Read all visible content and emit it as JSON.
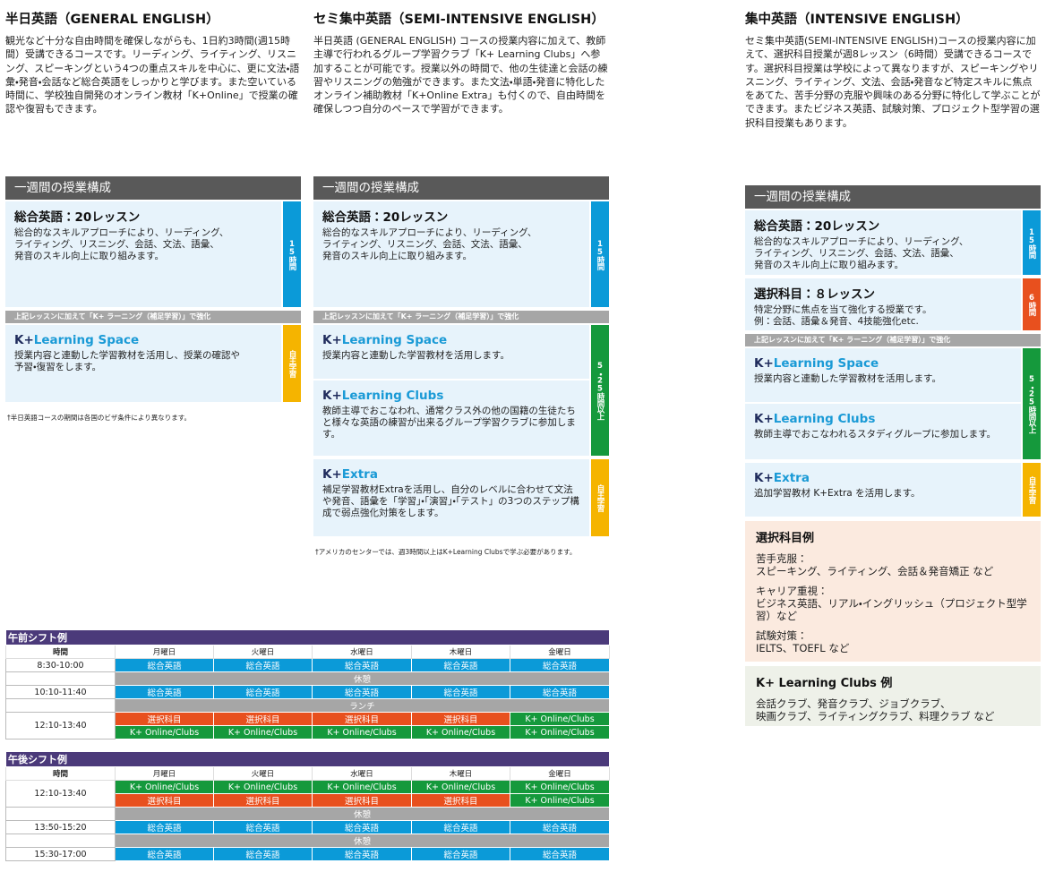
{
  "courses": [
    {
      "title": "半日英語（GENERAL ENGLISH）",
      "description": "観光など十分な自由時間を確保しながらも、1日約3時間(週15時間）受講できるコースです。リーディング、ライティング、リスニング、スピーキングという4つの重点スキルを中心に、更に文法・語彙・発音・会話など総合英語をしっかりと学びます。また空いている時間に、学校独自開発のオンライン教材「K+Online」で授業の確認や復習もできます。",
      "schedule_title": "一週間の授業構成",
      "groups": [
        {
          "side": "15時間",
          "color": "#0b9ad8",
          "items": [
            {
              "title": "総合英語：20レッスン",
              "text": "総合的なスキルアプローチにより、リーディング、\nライティング、リスニング、会話、文法、語彙、\n発音のスキル向上に取り組みます。"
            }
          ]
        },
        {
          "banner": "上記レッスンに加えて「K+ ラーニング（補足学習）」で強化"
        },
        {
          "side": "自主学習",
          "color": "#f5b400",
          "items": [
            {
              "logo": "K+",
              "title": "Learning Space",
              "text": "授業内容と連動した学習教材を活用し、授業の確認や\n予習・復習をします。"
            }
          ]
        }
      ],
      "note": "†半日英語コースの期間は各国のビザ条件により異なります。"
    },
    {
      "title": "セミ集中英語（SEMI-INTENSIVE ENGLISH）",
      "description": "半日英語 (GENERAL ENGLISH) コースの授業内容に加えて、教師主導で行われるグループ学習クラブ「K+ Learning Clubs」へ参加することが可能です。授業以外の時間で、他の生徒達と会話の練習やリスニングの勉強ができます。また文法・単語・発音に特化したオンライン補助教材「K+Online Extra」も付くので、自由時間を確保しつつ自分のペースで学習ができます。",
      "schedule_title": "一週間の授業構成",
      "groups": [
        {
          "side": "15時間",
          "color": "#0b9ad8",
          "items": [
            {
              "title": "総合英語：20レッスン",
              "text": "総合的なスキルアプローチにより、リーディング、\nライティング、リスニング、会話、文法、語彙、\n発音のスキル向上に取り組みます。"
            }
          ]
        },
        {
          "banner": "上記レッスンに加えて「K+ ラーニング（補足学習）」で強化"
        },
        {
          "side": "5・25時間以上",
          "color": "#15993c",
          "items": [
            {
              "logo": "K+",
              "title": "Learning Space",
              "text": "授業内容と連動した学習教材を活用します。"
            },
            {
              "logo": "K+",
              "title": "Learning Clubs",
              "text": "教師主導でおこなわれ、通常クラス外の他の国籍の生徒たちと様々な英語の練習が出来るグループ学習クラブに参加します。"
            }
          ]
        },
        {
          "side": "自主学習",
          "color": "#f5b400",
          "items": [
            {
              "logo": "K+",
              "title": "Extra",
              "text": "補足学習教材Extraを活用し、自分のレベルに合わせて文法や発音、語彙を「学習」・「演習」・「テスト」の3つのステップ構成で弱点強化対策をします。"
            }
          ]
        }
      ],
      "note": "†アメリカのセンターでは、週3時間以上はK+Learning Clubsで学ぶ必要があります。"
    },
    {
      "title": "集中英語（INTENSIVE ENGLISH）",
      "description": "セミ集中英語(SEMI-INTENSIVE ENGLISH)コースの授業内容に加えて、選択科目授業が週8レッスン（6時間）受講できるコースです。選択科目授業は学校によって異なりますが、スピーキングやリスニング、ライティング、文法、会話・発音など特定スキルに焦点をあてた、苦手分野の克服や興味のある分野に特化して学ぶことができます。またビジネス英語、試験対策、プロジェクト型学習の選択科目授業もあります。",
      "schedule_title": "一週間の授業構成",
      "groups": [
        {
          "side": "15時間",
          "color": "#0b9ad8",
          "items": [
            {
              "title": "総合英語：20レッスン",
              "text": "総合的なスキルアプローチにより、リーディング、\nライティング、リスニング、会話、文法、語彙、\n発音のスキル向上に取り組みます。"
            }
          ]
        },
        {
          "side": "6時間",
          "color": "#e8501e",
          "items": [
            {
              "title": "選択科目：８レッスン",
              "text": "特定分野に焦点を当て強化する授業です。\n例：会話、語彙＆発音、4技能強化etc."
            }
          ]
        },
        {
          "banner": "上記レッスンに加えて「K+ ラーニング（補足学習）」で強化"
        },
        {
          "side": "5・25時間以上",
          "color": "#15993c",
          "items": [
            {
              "logo": "K+",
              "title": "Learning Space",
              "text": "授業内容と連動した学習教材を活用します。"
            },
            {
              "logo": "K+",
              "title": "Learning Clubs",
              "text": "教師主導でおこなわれるスタディグループに参加します。"
            }
          ]
        },
        {
          "side": "自主学習",
          "color": "#f5b400",
          "items": [
            {
              "logo": "K+",
              "title": "Extra",
              "text": "追加学習教材 K+Extra を活用します。"
            }
          ]
        }
      ],
      "examples": {
        "title": "選択科目例",
        "items": [
          {
            "label": "苦手克服：",
            "text": "スピーキング、ライティング、会話＆発音矯正 など"
          },
          {
            "label": "キャリア重視：",
            "text": "ビジネス英語、リアル・イングリッシュ（プロジェクト型学習）など"
          },
          {
            "label": "試験対策：",
            "text": "IELTS、TOEFL など"
          }
        ]
      },
      "clubs_examples": {
        "title": "K+ Learning Clubs 例",
        "text": "会話クラブ、発音クラブ、ジョブクラブ、\n映画クラブ、ライティングクラブ、料理クラブ など"
      }
    }
  ],
  "timetables": [
    {
      "title": "午前シフト例",
      "columns": [
        "時間",
        "月曜日",
        "火曜日",
        "水曜日",
        "木曜日",
        "金曜日"
      ],
      "slots": [
        {
          "time": "8:30-10:00",
          "rows": [
            {
              "cells": [
                "総合英語",
                "総合英語",
                "総合英語",
                "総合英語",
                "総合英語"
              ],
              "colors": [
                "#0b9ad8",
                "#0b9ad8",
                "#0b9ad8",
                "#0b9ad8",
                "#0b9ad8"
              ]
            }
          ]
        },
        {
          "break": "休憩"
        },
        {
          "time": "10:10-11:40",
          "rows": [
            {
              "cells": [
                "総合英語",
                "総合英語",
                "総合英語",
                "総合英語",
                "総合英語"
              ],
              "colors": [
                "#0b9ad8",
                "#0b9ad8",
                "#0b9ad8",
                "#0b9ad8",
                "#0b9ad8"
              ]
            }
          ]
        },
        {
          "break": "ランチ"
        },
        {
          "time": "12:10-13:40",
          "rows": [
            {
              "cells": [
                "選択科目",
                "選択科目",
                "選択科目",
                "選択科目",
                "K+ Online/Clubs"
              ],
              "colors": [
                "#e8501e",
                "#e8501e",
                "#e8501e",
                "#e8501e",
                "#15993c"
              ]
            },
            {
              "cells": [
                "K+ Online/Clubs",
                "K+ Online/Clubs",
                "K+ Online/Clubs",
                "K+ Online/Clubs",
                "K+ Online/Clubs"
              ],
              "colors": [
                "#15993c",
                "#15993c",
                "#15993c",
                "#15993c",
                "#15993c"
              ]
            }
          ]
        }
      ]
    },
    {
      "title": "午後シフト例",
      "columns": [
        "時間",
        "月曜日",
        "火曜日",
        "水曜日",
        "木曜日",
        "金曜日"
      ],
      "slots": [
        {
          "time": "12:10-13:40",
          "rows": [
            {
              "cells": [
                "K+ Online/Clubs",
                "K+ Online/Clubs",
                "K+ Online/Clubs",
                "K+ Online/Clubs",
                "K+ Online/Clubs"
              ],
              "colors": [
                "#15993c",
                "#15993c",
                "#15993c",
                "#15993c",
                "#15993c"
              ]
            },
            {
              "cells": [
                "選択科目",
                "選択科目",
                "選択科目",
                "選択科目",
                "K+ Online/Clubs"
              ],
              "colors": [
                "#e8501e",
                "#e8501e",
                "#e8501e",
                "#e8501e",
                "#15993c"
              ]
            }
          ]
        },
        {
          "break": "休憩"
        },
        {
          "time": "13:50-15:20",
          "rows": [
            {
              "cells": [
                "総合英語",
                "総合英語",
                "総合英語",
                "総合英語",
                "総合英語"
              ],
              "colors": [
                "#0b9ad8",
                "#0b9ad8",
                "#0b9ad8",
                "#0b9ad8",
                "#0b9ad8"
              ]
            }
          ]
        },
        {
          "break": "休憩"
        },
        {
          "time": "15:30-17:00",
          "rows": [
            {
              "cells": [
                "総合英語",
                "総合英語",
                "総合英語",
                "総合英語",
                "総合英語"
              ],
              "colors": [
                "#0b9ad8",
                "#0b9ad8",
                "#0b9ad8",
                "#0b9ad8",
                "#0b9ad8"
              ]
            }
          ]
        }
      ]
    }
  ]
}
